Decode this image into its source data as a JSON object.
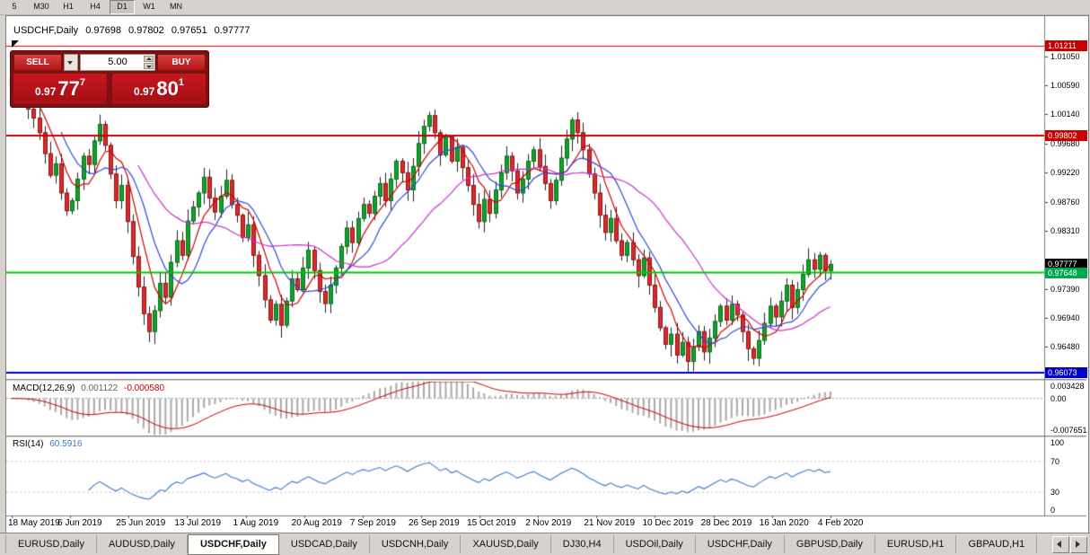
{
  "timeframe_bar": {
    "buttons": [
      "5",
      "M30",
      "H1",
      "H4",
      "D1",
      "W1",
      "MN"
    ],
    "active": "D1"
  },
  "chart": {
    "title": "USDCHF,Daily",
    "ohlc": {
      "open": "0.97698",
      "high": "0.97802",
      "low": "0.97651",
      "close": "0.97777"
    }
  },
  "trade_panel": {
    "sell_label": "SELL",
    "buy_label": "BUY",
    "volume": "5.00",
    "sell_price": {
      "base": "0.97",
      "big": "77",
      "sup": "7"
    },
    "buy_price": {
      "base": "0.97",
      "big": "80",
      "sup": "1"
    }
  },
  "price_axis": {
    "labels": [
      {
        "text": "1.01050",
        "price": 1.0105
      },
      {
        "text": "1.00590",
        "price": 1.0059
      },
      {
        "text": "1.00140",
        "price": 1.0014
      },
      {
        "text": "0.99680",
        "price": 0.9968
      },
      {
        "text": "0.99220",
        "price": 0.9922
      },
      {
        "text": "0.98760",
        "price": 0.9876
      },
      {
        "text": "0.98310",
        "price": 0.9831
      },
      {
        "text": "0.97390",
        "price": 0.9739
      },
      {
        "text": "0.96940",
        "price": 0.9694
      },
      {
        "text": "0.96480",
        "price": 0.9648
      }
    ],
    "badges": [
      {
        "text": "1.01211",
        "price": 1.01211,
        "color": "#c80000"
      },
      {
        "text": "0.99802",
        "price": 0.99802,
        "color": "#c80000"
      },
      {
        "text": "0.97777",
        "price": 0.97777,
        "color": "#000000"
      },
      {
        "text": "0.97648",
        "price": 0.97648,
        "color": "#00a651"
      },
      {
        "text": "0.96073",
        "price": 0.96073,
        "color": "#0000c8"
      }
    ]
  },
  "macd": {
    "label": "MACD(12,26,9)",
    "value_main": "0.001122",
    "value_signal": "-0.000580",
    "axis": {
      "top": "0.003428",
      "zero": "0.00",
      "bottom": "-0.007651"
    }
  },
  "rsi": {
    "label": "RSI(14)",
    "value": "60.5916",
    "axis": [
      "100",
      "70",
      "30",
      "0"
    ],
    "levels": [
      70,
      30
    ]
  },
  "date_axis": [
    "18 May 2019",
    "6 Jun 2019",
    "25 Jun 2019",
    "13 Jul 2019",
    "1 Aug 2019",
    "20 Aug 2019",
    "7 Sep 2019",
    "26 Sep 2019",
    "15 Oct 2019",
    "2 Nov 2019",
    "21 Nov 2019",
    "10 Dec 2019",
    "28 Dec 2019",
    "16 Jan 2020",
    "4 Feb 2020"
  ],
  "tabs": {
    "items": [
      "EURUSD,Daily",
      "AUDUSD,Daily",
      "USDCHF,Daily",
      "USDCAD,Daily",
      "USDCNH,Daily",
      "XAUUSD,Daily",
      "DJ30,H4",
      "USDOil,Daily",
      "USDCHF,Daily",
      "GBPUSD,Daily",
      "EURUSD,H1",
      "GBPAUD,H1"
    ],
    "active_index": 2
  },
  "chart_data": {
    "type": "candlestick",
    "symbol": "USDCHF",
    "timeframe": "Daily",
    "visible_ohlc": {
      "open": 0.97698,
      "high": 0.97802,
      "low": 0.97651,
      "close": 0.97777
    },
    "price_range": [
      0.95974,
      1.01655
    ],
    "macd_scale": [
      0.003428,
      -0.007651
    ],
    "hlines": [
      {
        "price": 1.01211,
        "color": "#c80000",
        "width": 1
      },
      {
        "price": 0.99802,
        "color": "#c80000",
        "width": 2
      },
      {
        "price": 0.97648,
        "color": "#00c800",
        "width": 2
      },
      {
        "price": 0.96073,
        "color": "#0000d2",
        "width": 2
      }
    ],
    "moving_averages": [
      {
        "period": 6,
        "color": "#d40000"
      },
      {
        "period": 10,
        "color": "#2f4bd6"
      },
      {
        "period": 24,
        "color": "#cc2fcc"
      }
    ],
    "indicators": {
      "macd_params": [
        12,
        26,
        9
      ],
      "rsi_period": 14
    },
    "first_open": 1.007,
    "closes": [
      1.0058,
      1.0041,
      1.0052,
      1.0022,
      1.0008,
      0.9985,
      0.9952,
      0.9918,
      0.9936,
      0.989,
      0.9862,
      0.9878,
      0.9912,
      0.9948,
      0.9935,
      0.9972,
      0.9998,
      0.9965,
      0.992,
      0.9878,
      0.9902,
      0.9845,
      0.979,
      0.9742,
      0.97,
      0.9672,
      0.9705,
      0.9748,
      0.9726,
      0.9781,
      0.9815,
      0.9792,
      0.9846,
      0.9868,
      0.989,
      0.9915,
      0.9882,
      0.986,
      0.9885,
      0.991,
      0.9872,
      0.9855,
      0.982,
      0.984,
      0.9792,
      0.976,
      0.9722,
      0.969,
      0.9715,
      0.9682,
      0.972,
      0.9755,
      0.9738,
      0.9772,
      0.98,
      0.9768,
      0.9735,
      0.9716,
      0.9745,
      0.9772,
      0.9806,
      0.9835,
      0.9812,
      0.985,
      0.9872,
      0.9858,
      0.9885,
      0.9905,
      0.9878,
      0.9912,
      0.994,
      0.9922,
      0.9895,
      0.9932,
      0.9968,
      0.9995,
      1.0012,
      0.9985,
      0.995,
      0.9978,
      0.994,
      0.9962,
      0.993,
      0.9902,
      0.9872,
      0.9845,
      0.988,
      0.9858,
      0.9895,
      0.9922,
      0.9948,
      0.9925,
      0.989,
      0.9912,
      0.994,
      0.9958,
      0.9932,
      0.9905,
      0.9878,
      0.991,
      0.9945,
      0.9975,
      1.0005,
      0.9985,
      0.9958,
      0.992,
      0.989,
      0.9855,
      0.9828,
      0.985,
      0.9815,
      0.9792,
      0.9812,
      0.9785,
      0.976,
      0.9788,
      0.9745,
      0.971,
      0.9678,
      0.9652,
      0.9668,
      0.9635,
      0.9655,
      0.9625,
      0.9648,
      0.9672,
      0.964,
      0.9662,
      0.9688,
      0.9712,
      0.969,
      0.9715,
      0.9698,
      0.9672,
      0.9645,
      0.963,
      0.9658,
      0.9685,
      0.9712,
      0.9695,
      0.972,
      0.9745,
      0.971,
      0.9738,
      0.9762,
      0.9785,
      0.977,
      0.9792,
      0.9768,
      0.97777
    ]
  }
}
